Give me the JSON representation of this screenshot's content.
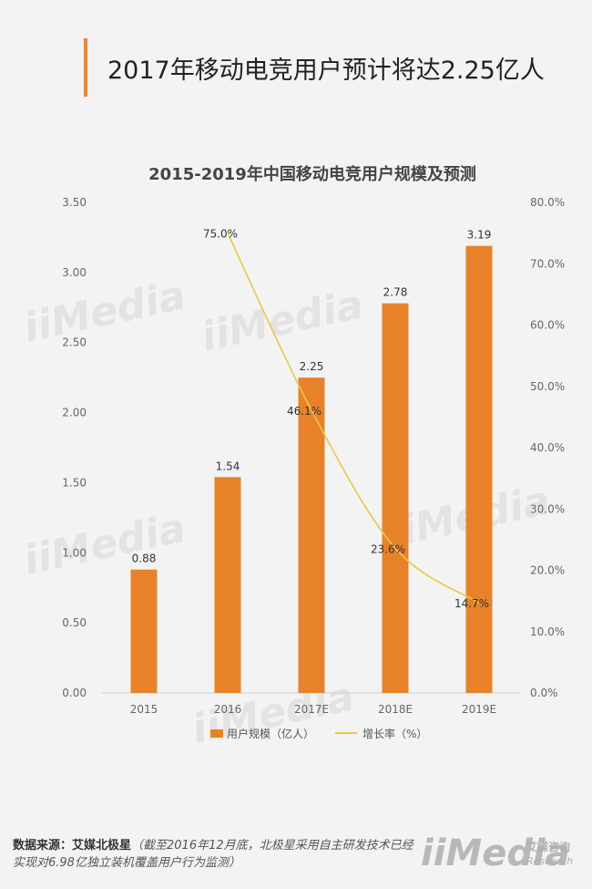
{
  "header": {
    "title": "2017年移动电竞用户预计将达2.25亿人"
  },
  "chart_data": {
    "type": "bar",
    "title": "2015-2019年中国移动电竞用户规模及预测",
    "categories": [
      "2015",
      "2016",
      "2017E",
      "2018E",
      "2019E"
    ],
    "series": [
      {
        "name": "用户规模（亿人）",
        "type": "bar",
        "axis": "left",
        "values": [
          0.88,
          1.54,
          2.25,
          2.78,
          3.19
        ],
        "labels": [
          "0.88",
          "1.54",
          "2.25",
          "2.78",
          "3.19"
        ],
        "color": "#e8822a"
      },
      {
        "name": "增长率（%）",
        "type": "line",
        "axis": "right",
        "values": [
          null,
          75.0,
          46.1,
          23.6,
          14.7
        ],
        "labels": [
          "",
          "75.0%",
          "46.1%",
          "23.6%",
          "14.7%"
        ],
        "color": "#e8c84a"
      }
    ],
    "y_left": {
      "min": 0,
      "max": 3.5,
      "ticks": [
        "0.00",
        "0.50",
        "1.00",
        "1.50",
        "2.00",
        "2.50",
        "3.00",
        "3.50"
      ]
    },
    "y_right": {
      "min": 0,
      "max": 80,
      "ticks": [
        "0.0%",
        "10.0%",
        "20.0%",
        "30.0%",
        "40.0%",
        "50.0%",
        "60.0%",
        "70.0%",
        "80.0%"
      ]
    },
    "grid": false,
    "legend": "bottom"
  },
  "footer": {
    "source_label": "数据来源：艾媒北极星",
    "source_note": "（截至2016年12月底，北极星采用自主研发技术已经实现对6.98亿独立装机覆盖用户行为监测）"
  },
  "logo": {
    "mark": "iiMedia",
    "cn": "艾媒咨询",
    "en": "Research"
  },
  "watermark": {
    "text": "iiMedia",
    "sub": "艾媒咨询"
  }
}
